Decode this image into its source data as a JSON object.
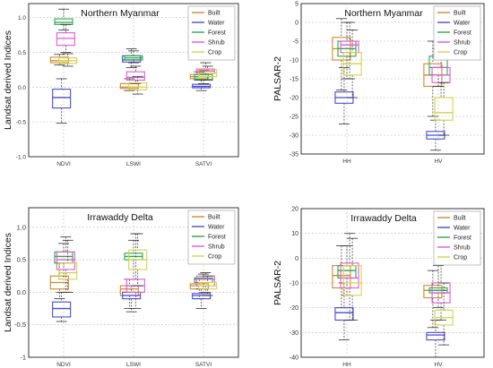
{
  "colors": {
    "Built": "#d08a2c",
    "Water": "#4b4bd6",
    "Forest": "#2aa84a",
    "Shrub": "#e05ad6",
    "Crop": "#d6d24a",
    "grid": "#bdbdbd",
    "axis": "#222222",
    "whisker": "#333333"
  },
  "chart_data": [
    {
      "type": "box",
      "title": "Northern Myanmar",
      "xlabel": "",
      "ylabel": "Landsat derived Indices",
      "categories": [
        "NDVI",
        "LSWI",
        "SATVI"
      ],
      "ylim": [
        -1.0,
        1.2
      ],
      "yticks": [
        -1.0,
        -0.5,
        0.0,
        0.5,
        1.0
      ],
      "yticklabels": [
        "-1.0",
        "-0.5",
        "0.0",
        "0.5",
        "1.0"
      ],
      "legend_position": "top-right",
      "grid": true,
      "series": [
        {
          "name": "Built",
          "boxes": [
            [
              0.32,
              0.35,
              0.38,
              0.43,
              0.47
            ],
            [
              -0.05,
              -0.02,
              0.0,
              0.05,
              0.12
            ],
            [
              0.1,
              0.12,
              0.15,
              0.18,
              0.22
            ]
          ]
        },
        {
          "name": "Water",
          "boxes": [
            [
              -0.52,
              -0.3,
              -0.15,
              -0.03,
              0.12
            ],
            [
              0.28,
              0.36,
              0.39,
              0.45,
              0.55
            ],
            [
              -0.05,
              -0.01,
              0.01,
              0.04,
              0.1
            ]
          ]
        },
        {
          "name": "Forest",
          "boxes": [
            [
              0.82,
              0.9,
              0.93,
              0.98,
              1.12
            ],
            [
              0.35,
              0.39,
              0.42,
              0.45,
              0.52
            ],
            [
              0.05,
              0.11,
              0.15,
              0.18,
              0.24
            ]
          ]
        },
        {
          "name": "Shrub",
          "boxes": [
            [
              0.5,
              0.6,
              0.7,
              0.78,
              0.9
            ],
            [
              0.05,
              0.1,
              0.14,
              0.22,
              0.3
            ],
            [
              0.15,
              0.2,
              0.23,
              0.26,
              0.35
            ]
          ]
        },
        {
          "name": "Crop",
          "boxes": [
            [
              0.3,
              0.34,
              0.38,
              0.42,
              0.48
            ],
            [
              -0.1,
              -0.04,
              0.0,
              0.06,
              0.15
            ],
            [
              0.1,
              0.15,
              0.2,
              0.25,
              0.3
            ]
          ]
        }
      ]
    },
    {
      "type": "box",
      "title": "Northern Myanmar",
      "xlabel": "",
      "ylabel": "PALSAR-2",
      "categories": [
        "HH",
        "HV"
      ],
      "ylim": [
        -35,
        5
      ],
      "yticks": [
        -35,
        -30,
        -25,
        -20,
        -15,
        -10,
        -5,
        0,
        5
      ],
      "yticklabels": [
        "-35",
        "-30",
        "-25",
        "-20",
        "-15",
        "-10",
        "-5",
        "0",
        "5"
      ],
      "legend_position": "top-right",
      "grid": true,
      "series": [
        {
          "name": "Built",
          "boxes": [
            [
              -18,
              -10,
              -7,
              -4,
              1
            ],
            [
              -25,
              -17,
              -14,
              -11,
              -5
            ]
          ]
        },
        {
          "name": "Water",
          "boxes": [
            [
              -27,
              -21.5,
              -20,
              -18.5,
              -12
            ],
            [
              -34,
              -31,
              -30,
              -29,
              -26
            ]
          ]
        },
        {
          "name": "Forest",
          "boxes": [
            [
              -15,
              -9,
              -7,
              -5,
              0
            ],
            [
              -17,
              -14,
              -12,
              -9,
              -7
            ]
          ]
        },
        {
          "name": "Shrub",
          "boxes": [
            [
              -15,
              -8,
              -6,
              -5,
              0
            ],
            [
              -20,
              -16,
              -14,
              -12,
              -8
            ]
          ]
        },
        {
          "name": "Crop",
          "boxes": [
            [
              -20,
              -14,
              -11,
              -8,
              -2
            ],
            [
              -30,
              -26,
              -24,
              -20,
              -16
            ]
          ]
        }
      ]
    },
    {
      "type": "box",
      "title": "Irrawaddy Delta",
      "xlabel": "",
      "ylabel": "Landsat derived Indices",
      "categories": [
        "NDVI",
        "LSWI",
        "SATVI"
      ],
      "ylim": [
        -1.0,
        1.3
      ],
      "yticks": [
        -1.0,
        -0.5,
        0.0,
        0.5,
        1.0
      ],
      "yticklabels": [
        "-1",
        "-0.5",
        "0.0",
        "0.5",
        "1.0"
      ],
      "legend_position": "top-right",
      "grid": true,
      "series": [
        {
          "name": "Built",
          "boxes": [
            [
              -0.1,
              0.05,
              0.15,
              0.25,
              0.45
            ],
            [
              -0.25,
              -0.05,
              0.05,
              0.1,
              0.2
            ],
            [
              -0.1,
              0.05,
              0.1,
              0.13,
              0.2
            ]
          ]
        },
        {
          "name": "Water",
          "boxes": [
            [
              -0.45,
              -0.38,
              -0.25,
              -0.15,
              0.0
            ],
            [
              -0.3,
              -0.1,
              -0.05,
              0.0,
              0.1
            ],
            [
              -0.25,
              -0.1,
              -0.05,
              -0.02,
              0.05
            ]
          ]
        },
        {
          "name": "Forest",
          "boxes": [
            [
              0.2,
              0.45,
              0.55,
              0.62,
              0.75
            ],
            [
              0.2,
              0.5,
              0.55,
              0.6,
              0.8
            ],
            [
              0.05,
              0.15,
              0.2,
              0.22,
              0.28
            ]
          ]
        },
        {
          "name": "Shrub",
          "boxes": [
            [
              0.0,
              0.35,
              0.5,
              0.62,
              0.85
            ],
            [
              -0.25,
              0.0,
              0.1,
              0.2,
              0.9
            ],
            [
              0.0,
              0.1,
              0.2,
              0.25,
              0.3
            ]
          ]
        },
        {
          "name": "Crop",
          "boxes": [
            [
              0.0,
              0.2,
              0.3,
              0.45,
              0.8
            ],
            [
              0.1,
              0.35,
              0.5,
              0.65,
              0.9
            ],
            [
              -0.05,
              0.05,
              0.1,
              0.15,
              0.25
            ]
          ]
        }
      ]
    },
    {
      "type": "box",
      "title": "Irrawaddy Delta",
      "xlabel": "",
      "ylabel": "PALSAR-2",
      "categories": [
        "HH",
        "HV"
      ],
      "ylim": [
        -40,
        20
      ],
      "yticks": [
        -40,
        -30,
        -20,
        -10,
        0,
        10,
        20
      ],
      "yticklabels": [
        "-40",
        "-30",
        "-20",
        "-10",
        "0",
        "10",
        "20"
      ],
      "legend_position": "top-right",
      "grid": true,
      "series": [
        {
          "name": "Built",
          "boxes": [
            [
              -20,
              -12,
              -7,
              -3,
              5
            ],
            [
              -28,
              -16,
              -13,
              -11,
              -5
            ]
          ]
        },
        {
          "name": "Water",
          "boxes": [
            [
              -33,
              -25,
              -22,
              -20,
              -10
            ],
            [
              -40,
              -33,
              -31,
              -30,
              -25
            ]
          ]
        },
        {
          "name": "Forest",
          "boxes": [
            [
              -15,
              -8,
              -5,
              -3,
              5
            ],
            [
              -20,
              -14,
              -13,
              -12,
              -3
            ]
          ]
        },
        {
          "name": "Shrub",
          "boxes": [
            [
              -25,
              -12,
              -8,
              -2,
              10
            ],
            [
              -25,
              -18,
              -14,
              -10,
              10
            ]
          ]
        },
        {
          "name": "Crop",
          "boxes": [
            [
              -25,
              -15,
              -10,
              -3,
              8
            ],
            [
              -35,
              -27,
              -24,
              -21,
              -10
            ]
          ]
        }
      ]
    }
  ]
}
